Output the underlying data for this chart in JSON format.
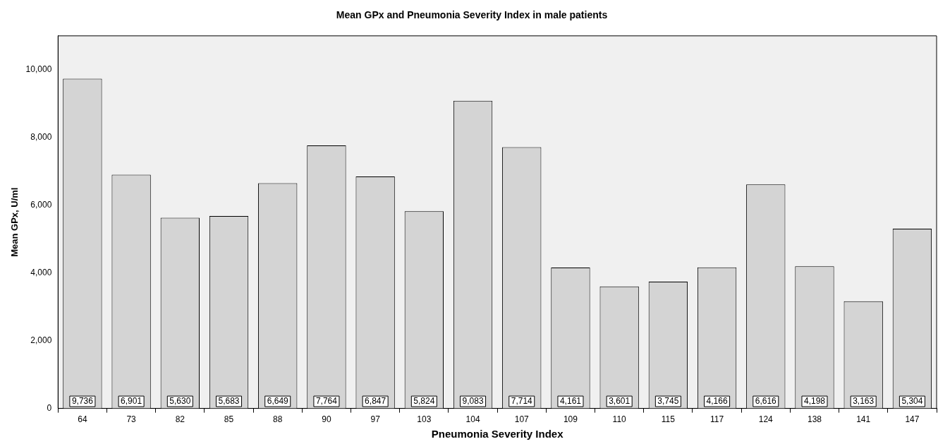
{
  "chart_data": {
    "type": "bar",
    "title": "Mean GPx and Pneumonia Severity Index in male patients",
    "xlabel": "Pneumonia Severity Index",
    "ylabel": "Mean GPx, U/ml",
    "categories": [
      "64",
      "73",
      "82",
      "85",
      "88",
      "90",
      "97",
      "103",
      "104",
      "107",
      "109",
      "110",
      "115",
      "117",
      "124",
      "138",
      "141",
      "147"
    ],
    "values": [
      9736,
      6901,
      5630,
      5683,
      6649,
      7764,
      6847,
      5824,
      9083,
      7714,
      4161,
      3601,
      3745,
      4166,
      6616,
      4198,
      3163,
      5304
    ],
    "value_labels": [
      "9,736",
      "6,901",
      "5,630",
      "5,683",
      "6,649",
      "7,764",
      "6,847",
      "5,824",
      "9,083",
      "7,714",
      "4,161",
      "3,601",
      "3,745",
      "4,166",
      "6,616",
      "4,198",
      "3,163",
      "5,304"
    ],
    "color": "#d4d4d4",
    "ylim": [
      0,
      11000
    ],
    "yticks": [
      {
        "value": 0,
        "label": "0"
      },
      {
        "value": 2000,
        "label": "2,000"
      },
      {
        "value": 4000,
        "label": "4,000"
      },
      {
        "value": 6000,
        "label": "6,000"
      },
      {
        "value": 8000,
        "label": "8,000"
      },
      {
        "value": 10000,
        "label": "10,000"
      }
    ],
    "grid": false,
    "legend": false
  }
}
